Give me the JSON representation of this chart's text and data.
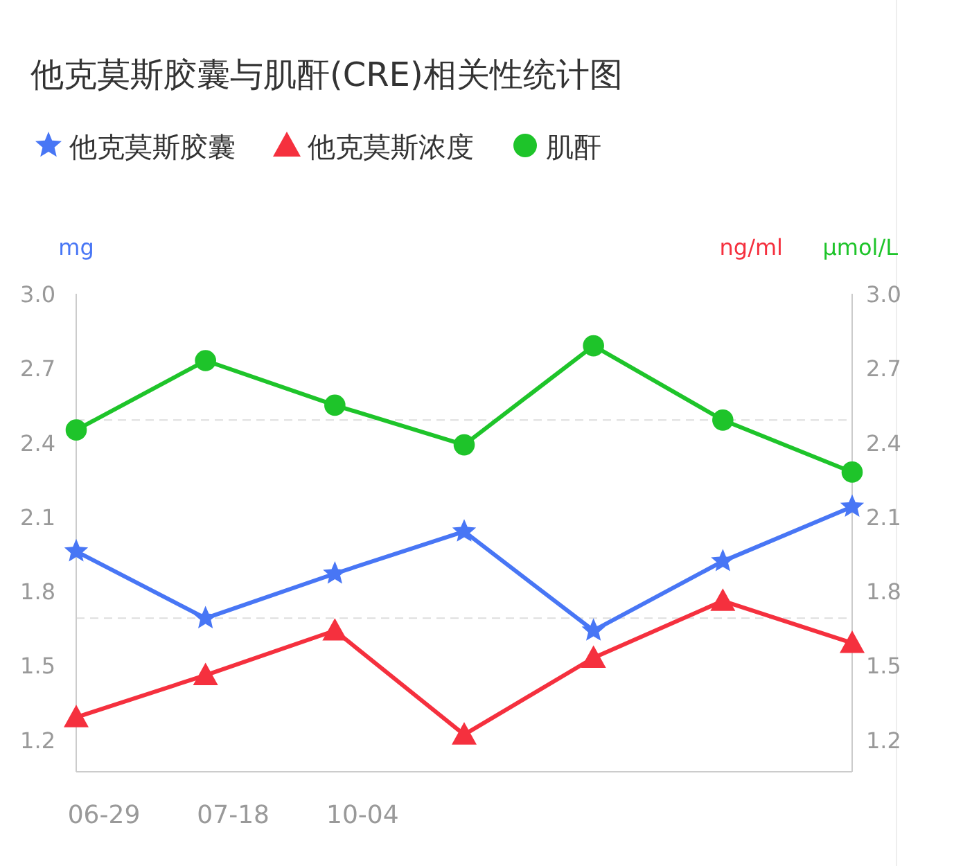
{
  "chart_data": {
    "type": "line",
    "title": "他克莫斯胶囊与肌酐(CRE)相关性统计图",
    "ylabel": "mg",
    "y2label": "ng/ml",
    "annotations": [
      "μmol/L"
    ],
    "categories": [
      "06-29",
      "07-18",
      "10-04",
      null,
      null,
      null,
      null
    ],
    "series": [
      {
        "name": "他克莫斯胶囊",
        "color": "#4876f5",
        "marker": "star",
        "values": [
          1.96,
          1.69,
          1.87,
          2.04,
          1.64,
          1.92,
          2.14
        ]
      },
      {
        "name": "他克莫斯浓度",
        "color": "#f5303e",
        "marker": "triangle",
        "values": [
          1.29,
          1.46,
          1.64,
          1.22,
          1.53,
          1.76,
          1.59
        ]
      },
      {
        "name": "肌酐",
        "color": "#1ec42a",
        "marker": "circle",
        "values": [
          2.45,
          2.73,
          2.55,
          2.39,
          2.79,
          2.49,
          2.28
        ]
      }
    ],
    "ylim": [
      1.07,
      3.0
    ],
    "yticks": [
      {
        "value": 1.2,
        "label": "1.2"
      },
      {
        "value": 1.5,
        "label": "1.5"
      },
      {
        "value": 1.8,
        "label": "1.8"
      },
      {
        "value": 2.1,
        "label": "2.1"
      },
      {
        "value": 2.4,
        "label": "2.4"
      },
      {
        "value": 2.7,
        "label": "2.7"
      },
      {
        "value": 3.0,
        "label": "3.0"
      }
    ],
    "y2lim": [
      1.07,
      3.0
    ],
    "y2ticks": [
      {
        "value": 1.2,
        "label": "1.2"
      },
      {
        "value": 1.5,
        "label": "1.5"
      },
      {
        "value": 1.8,
        "label": "1.8"
      },
      {
        "value": 2.1,
        "label": "2.1"
      },
      {
        "value": 2.4,
        "label": "2.4"
      },
      {
        "value": 2.7,
        "label": "2.7"
      },
      {
        "value": 3.0,
        "label": "3.0"
      }
    ],
    "ref_lines": [
      {
        "axis": "y",
        "value": 2.49,
        "color": "#dddddd",
        "line_style": "dashed"
      },
      {
        "axis": "y",
        "value": 1.69,
        "color": "#dddddd",
        "line_style": "dashed"
      }
    ],
    "legend": "top left",
    "grid": false,
    "line_style": "solid"
  }
}
